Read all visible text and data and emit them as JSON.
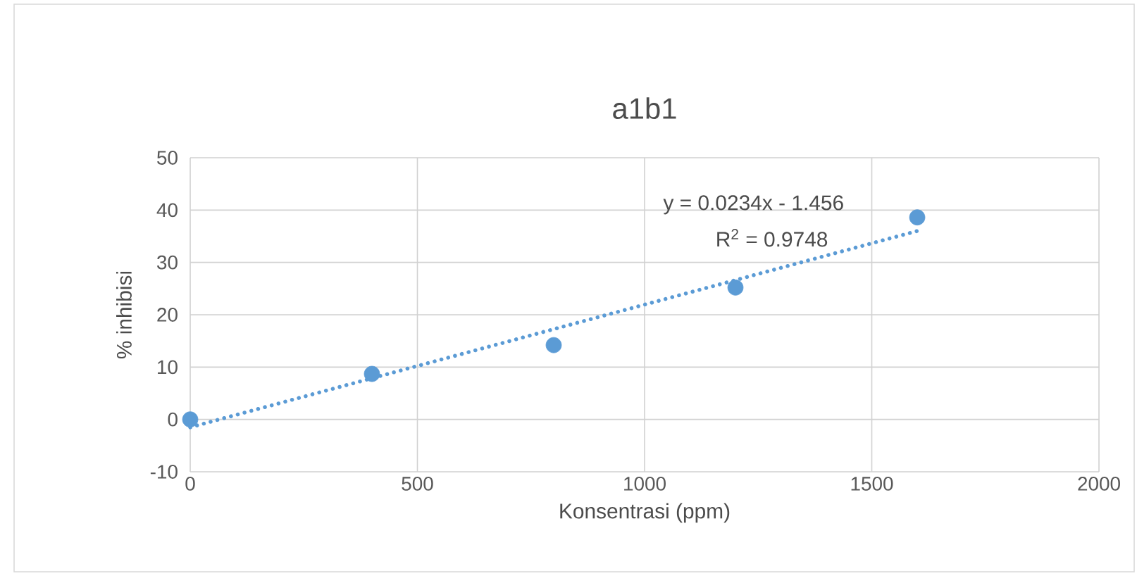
{
  "chart_data": {
    "type": "scatter",
    "title": "a1b1",
    "xlabel": "Konsentrasi (ppm)",
    "ylabel": "% inhibisi",
    "x": [
      0,
      400,
      800,
      1200,
      1600
    ],
    "series": [
      {
        "color": "#5b9bd5",
        "values": [
          0,
          8.7,
          14.2,
          25.2,
          38.6
        ],
        "marker": "circle"
      },
      {
        "type": "line",
        "color": "#5b9bd5",
        "x": [
          0,
          1600
        ],
        "values": [
          -1.5,
          36.0
        ],
        "line_style": "dotted",
        "marker": "none"
      }
    ],
    "annotations": [
      "y = 0.0234x - 1.456",
      "R$^{2}$ = 0.9748"
    ],
    "xlim": [
      0,
      2000
    ],
    "xticks": [
      0,
      500,
      1000,
      1500,
      2000
    ],
    "ylim": [
      -10,
      50
    ],
    "yticks": [
      -10,
      0,
      10,
      20,
      30,
      40,
      50
    ],
    "grid": true
  }
}
